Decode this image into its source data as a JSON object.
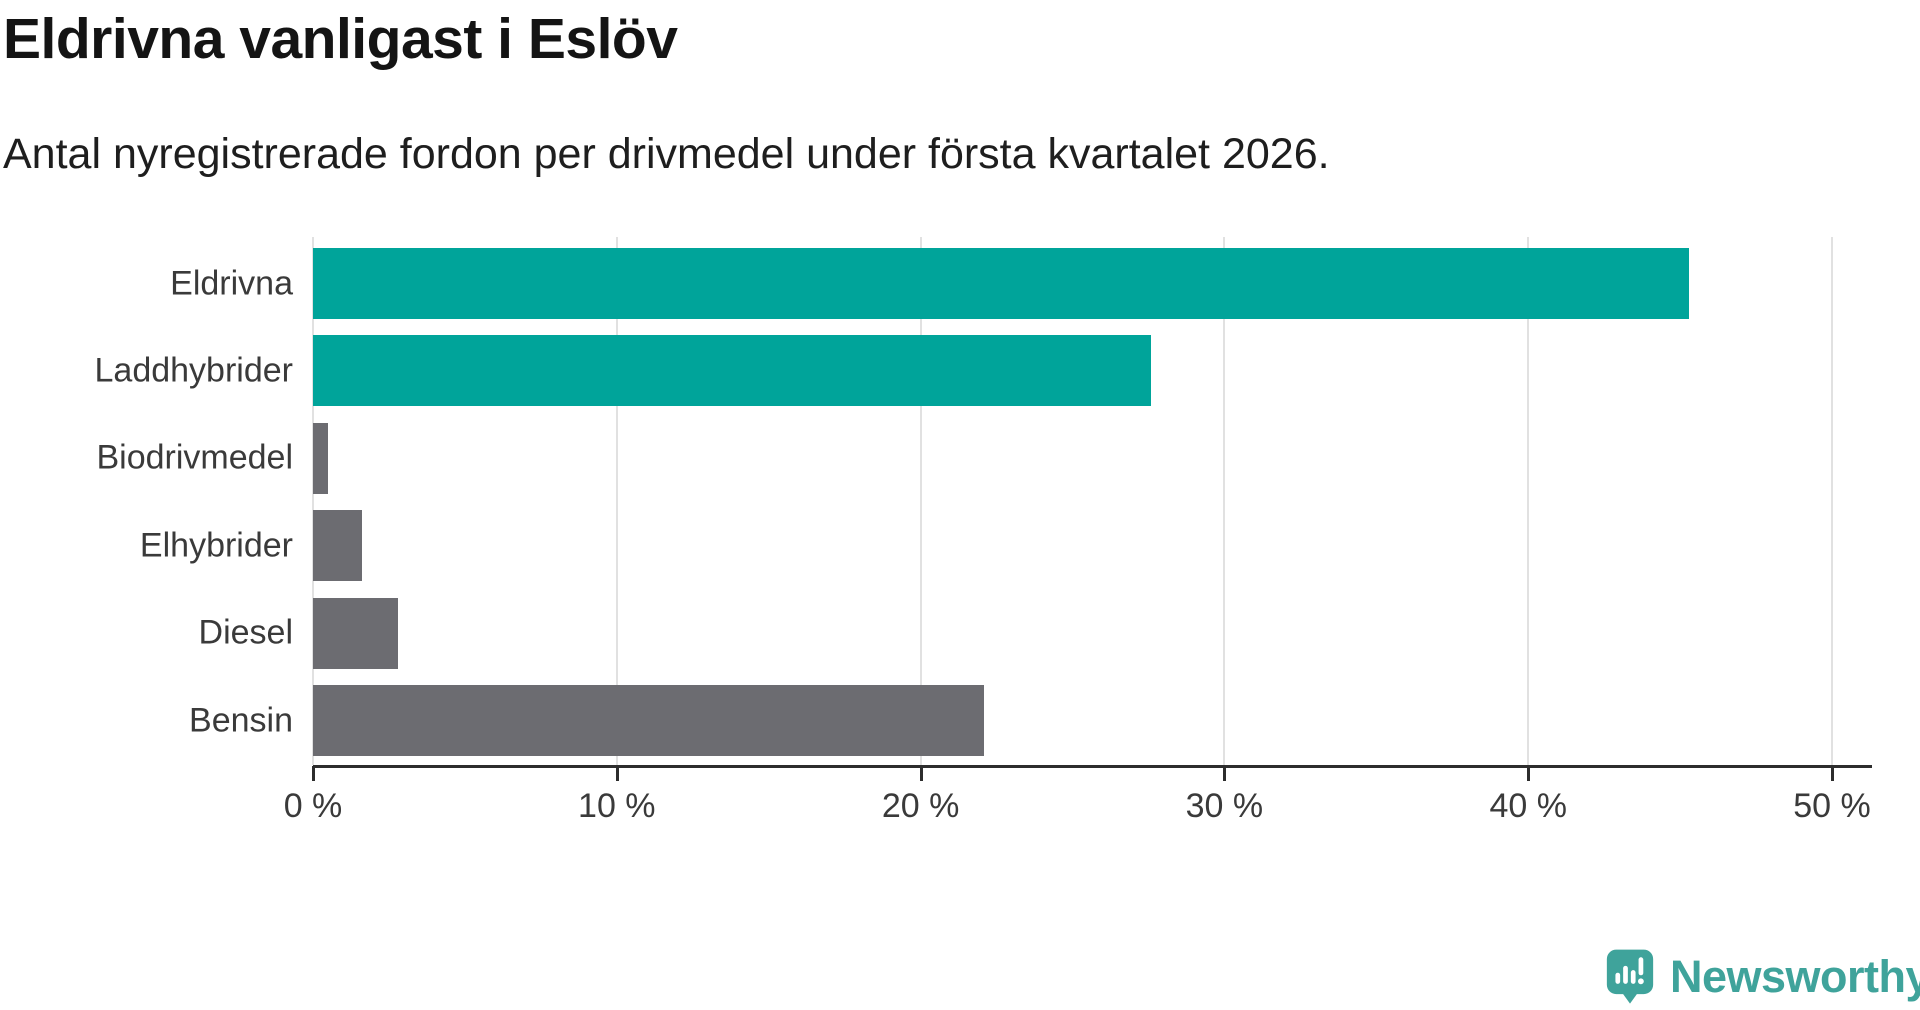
{
  "header": {
    "title": "Eldrivna vanligast i Eslöv",
    "subtitle": "Antal nyregistrerade fordon per drivmedel under första kvartalet 2026."
  },
  "chart_data": {
    "type": "bar",
    "orientation": "horizontal",
    "title": "Eldrivna vanligast i Eslöv",
    "subtitle": "Antal nyregistrerade fordon per drivmedel under första kvartalet 2026.",
    "categories": [
      "Eldrivna",
      "Laddhybrider",
      "Biodrivmedel",
      "Elhybrider",
      "Diesel",
      "Bensin"
    ],
    "values": [
      45.3,
      27.6,
      0.5,
      1.6,
      2.8,
      22.1
    ],
    "unit": "%",
    "bar_colors": [
      "#00a49a",
      "#00a49a",
      "#6c6c71",
      "#6c6c71",
      "#6c6c71",
      "#6c6c71"
    ],
    "xlabel": "",
    "ylabel": "",
    "xlim": [
      0,
      51.3
    ],
    "x_ticks": [
      0,
      10,
      20,
      30,
      40,
      50
    ],
    "x_tick_labels": [
      "0 %",
      "10 %",
      "20 %",
      "30 %",
      "40 %",
      "50 %"
    ],
    "grid": "vertical",
    "legend": "none"
  },
  "colors": {
    "accent_teal": "#00a49a",
    "neutral_gray": "#6c6c71",
    "gridline": "#e1e1e1",
    "axis": "#2d2d2d",
    "text_dark": "#141414",
    "text_label": "#3a3a3a",
    "logo_teal": "#3fa39b"
  },
  "branding": {
    "logo_text": "Newsworthy",
    "logo_icon": "speech-bubble-bar-chart-icon"
  }
}
